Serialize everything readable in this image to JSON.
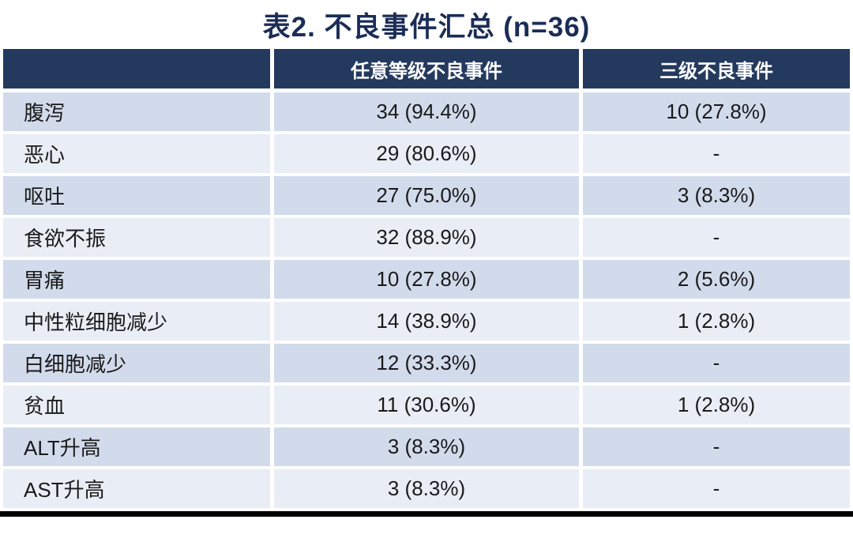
{
  "title": "表2. 不良事件汇总 (n=36)",
  "table": {
    "headers": {
      "col1": "",
      "col2": "任意等级不良事件",
      "col3": "三级不良事件"
    },
    "rows": [
      {
        "label": "腹泻",
        "any_grade": "34 (94.4%)",
        "grade3": "10 (27.8%)"
      },
      {
        "label": "恶心",
        "any_grade": "29 (80.6%)",
        "grade3": "-"
      },
      {
        "label": "呕吐",
        "any_grade": "27 (75.0%)",
        "grade3": "3 (8.3%)"
      },
      {
        "label": "食欲不振",
        "any_grade": "32 (88.9%)",
        "grade3": "-"
      },
      {
        "label": "胃痛",
        "any_grade": "10 (27.8%)",
        "grade3": "2 (5.6%)"
      },
      {
        "label": "中性粒细胞减少",
        "any_grade": "14 (38.9%)",
        "grade3": "1 (2.8%)"
      },
      {
        "label": "白细胞减少",
        "any_grade": "12 (33.3%)",
        "grade3": "-"
      },
      {
        "label": "贫血",
        "any_grade": "11 (30.6%)",
        "grade3": "1 (2.8%)"
      },
      {
        "label": "ALT升高",
        "any_grade": "3 (8.3%)",
        "grade3": "-"
      },
      {
        "label": "AST升高",
        "any_grade": "3 (8.3%)",
        "grade3": "-"
      }
    ]
  },
  "colors": {
    "title": "#1B2D56",
    "header_bg": "#24395E",
    "header_text": "#FFFFFF",
    "row_odd_bg": "#D2DBEB",
    "row_even_bg": "#E9EDF6",
    "cell_text": "#1A1A1A",
    "separator": "#FFFFFF",
    "bottom_bar": "#000000"
  }
}
